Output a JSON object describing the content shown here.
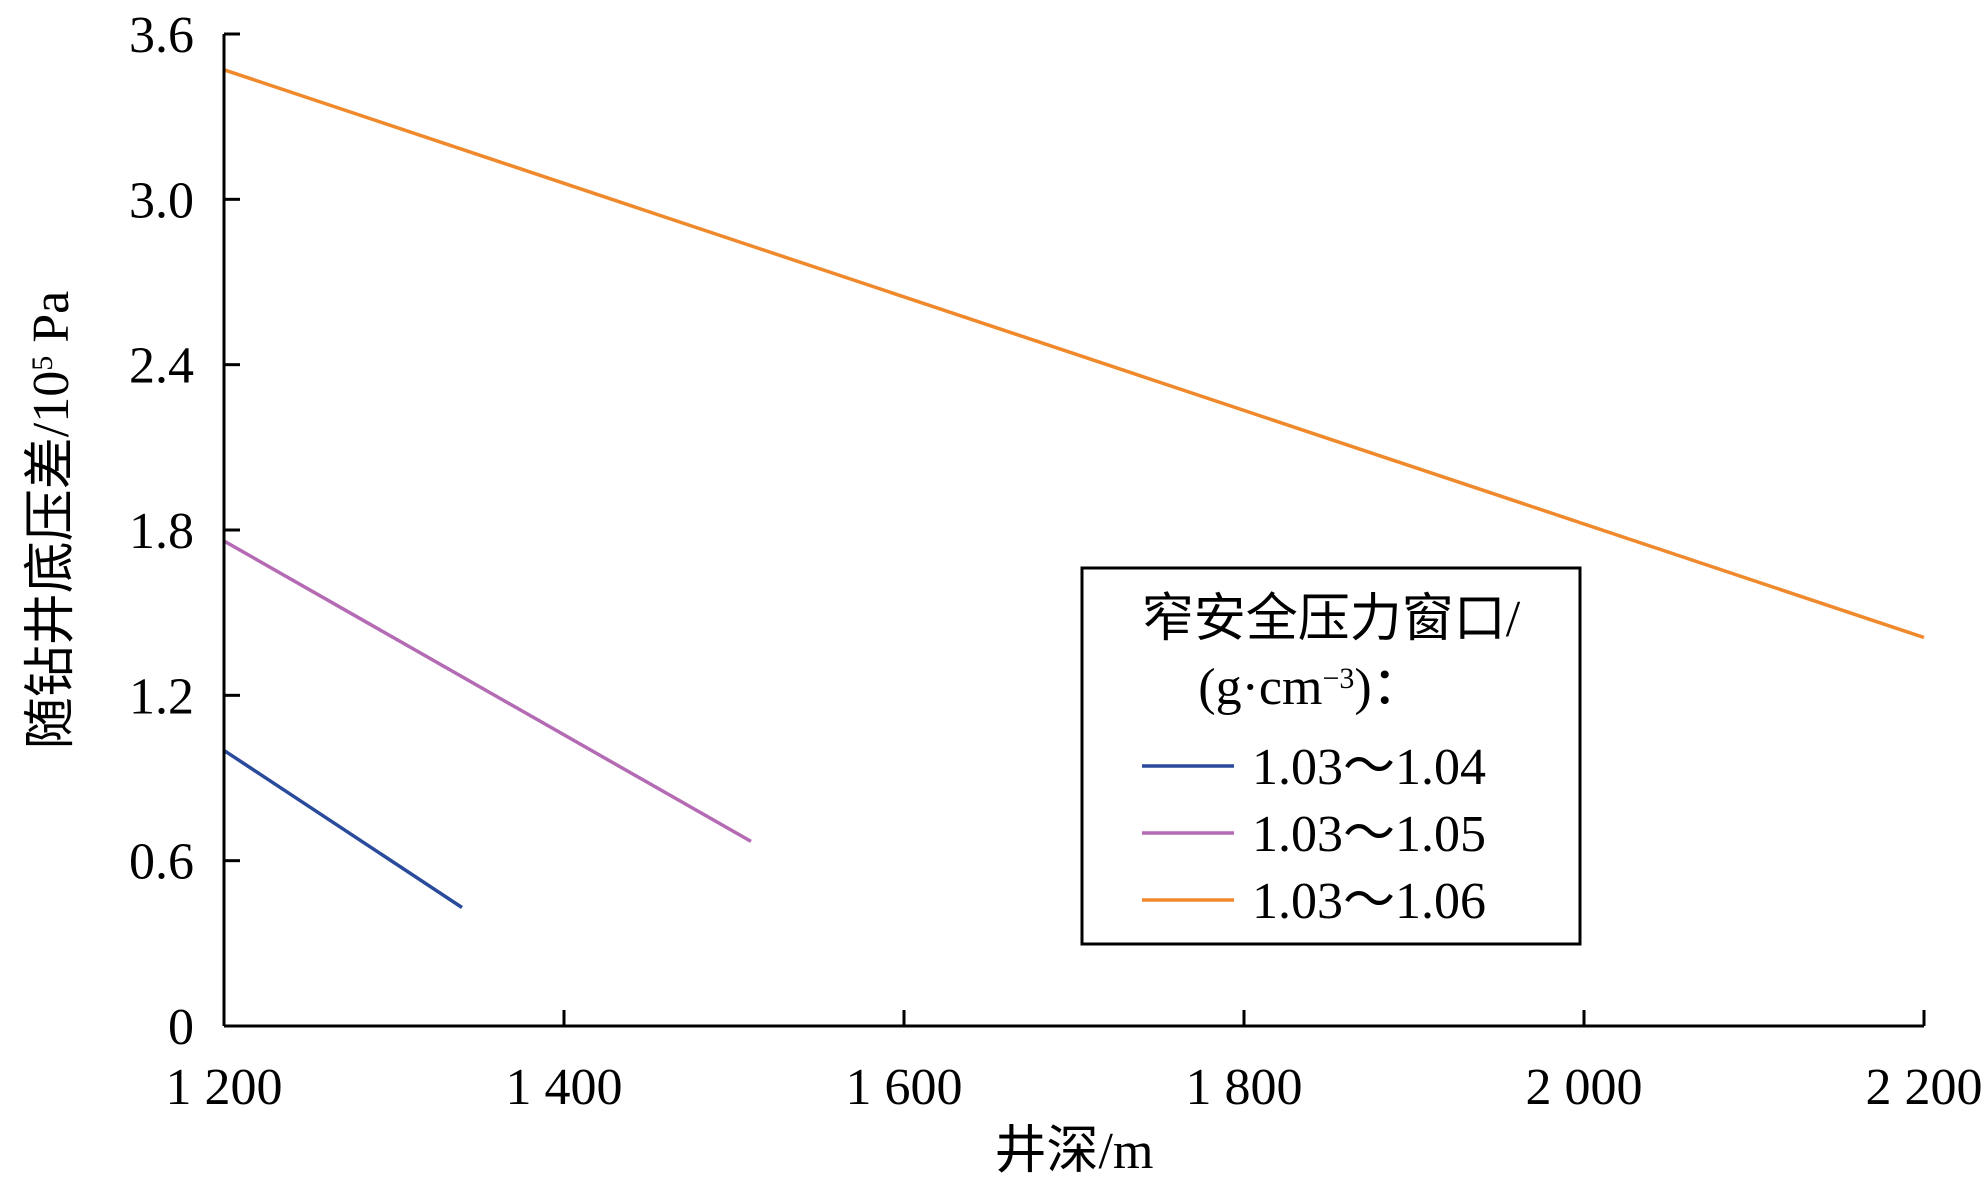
{
  "chart_data": {
    "type": "line",
    "title": "",
    "xlabel": "井深/m",
    "ylabel": {
      "prefix": "随钻井底压差/10",
      "sup": "5",
      "suffix": " Pa"
    },
    "xlim": [
      1200,
      2200
    ],
    "ylim": [
      0,
      3.6
    ],
    "x_ticks": [
      {
        "value": 1200,
        "label": "1 200"
      },
      {
        "value": 1400,
        "label": "1 400"
      },
      {
        "value": 1600,
        "label": "1 600"
      },
      {
        "value": 1800,
        "label": "1 800"
      },
      {
        "value": 2000,
        "label": "2 000"
      },
      {
        "value": 2200,
        "label": "2 200"
      }
    ],
    "y_ticks": [
      {
        "value": 0,
        "label": "0"
      },
      {
        "value": 0.6,
        "label": "0.6"
      },
      {
        "value": 1.2,
        "label": "1.2"
      },
      {
        "value": 1.8,
        "label": "1.8"
      },
      {
        "value": 2.4,
        "label": "2.4"
      },
      {
        "value": 3.0,
        "label": "3.0"
      },
      {
        "value": 3.6,
        "label": "3.6"
      }
    ],
    "grid": false,
    "legend": {
      "position": "center-right",
      "title_line1": "窄安全压力窗口/",
      "title_line2": {
        "prefix": "(g·cm",
        "sup": "−3",
        "suffix": ")："
      }
    },
    "series": [
      {
        "name": "1.03～1.04",
        "color": "#2a4b9b",
        "x": [
          1200,
          1340
        ],
        "y": [
          1.0,
          0.43
        ]
      },
      {
        "name": "1.03～1.05",
        "color": "#b46bb4",
        "x": [
          1200,
          1510
        ],
        "y": [
          1.76,
          0.67
        ]
      },
      {
        "name": "1.03～1.06",
        "color": "#f0892c",
        "x": [
          1200,
          2200
        ],
        "y": [
          3.47,
          1.41
        ]
      }
    ]
  }
}
